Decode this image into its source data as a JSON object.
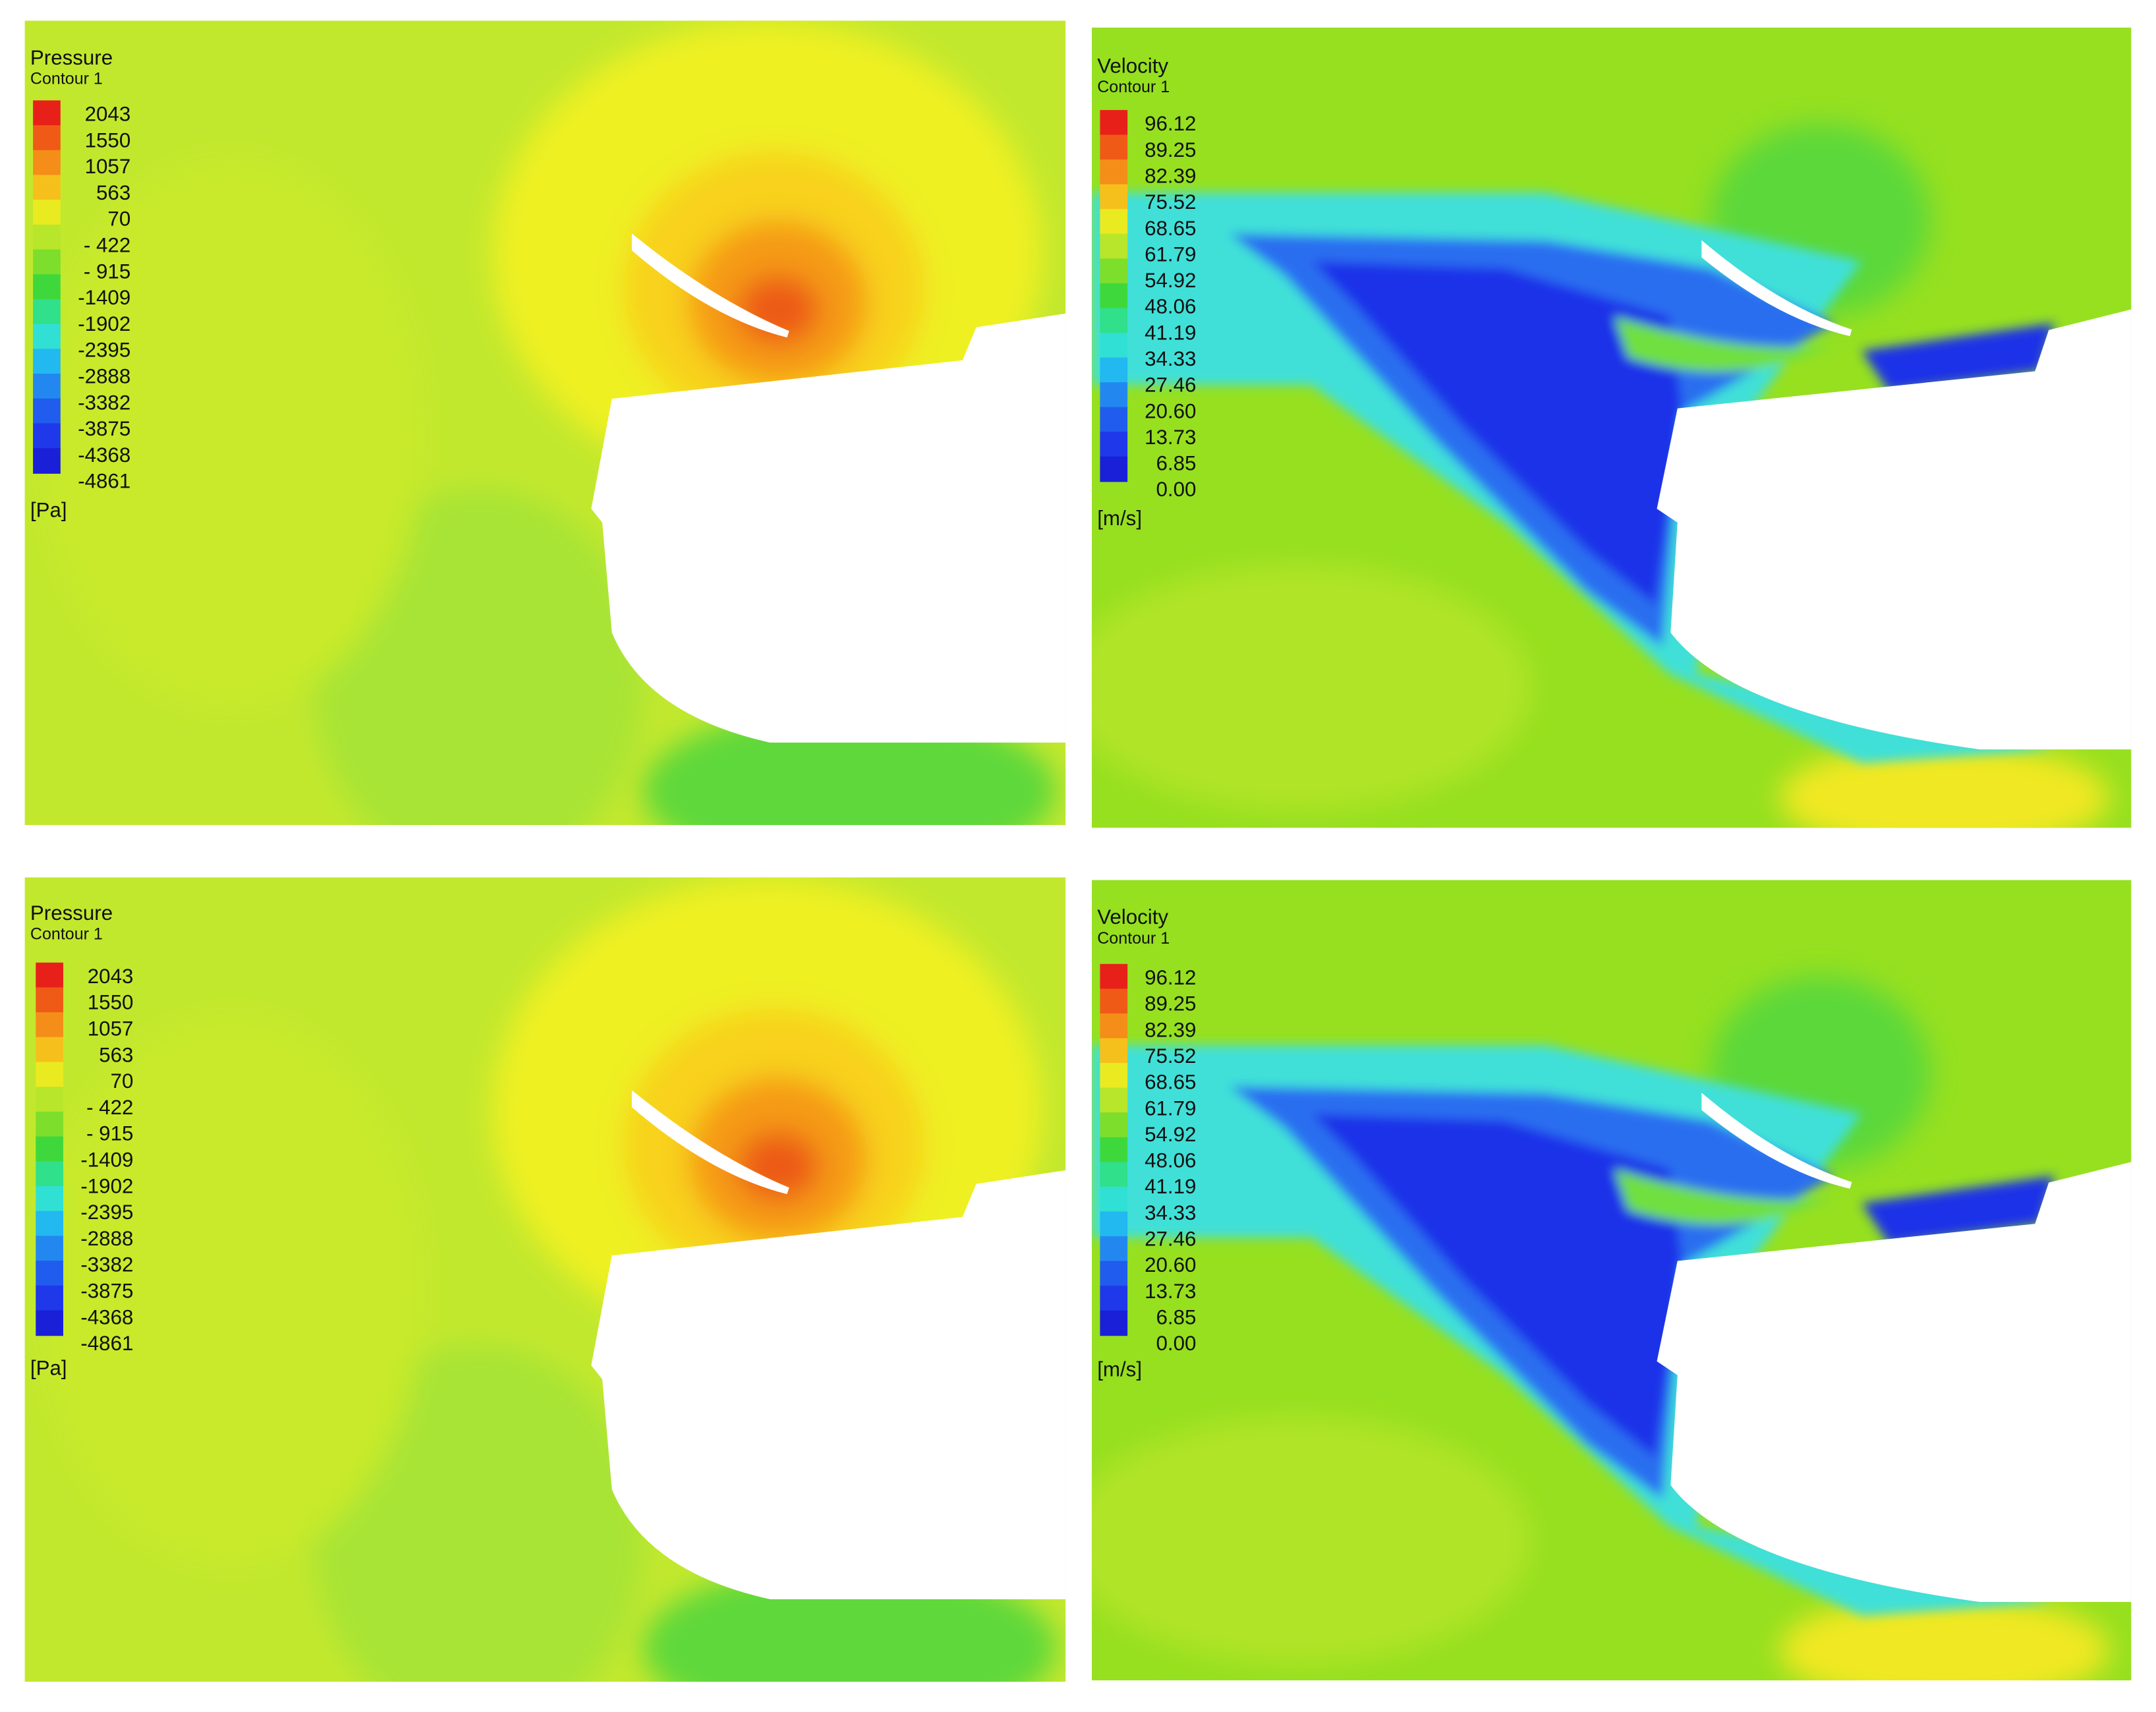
{
  "panels": [
    {
      "title": "Pressure",
      "subtitle": "Contour 1",
      "unit": "[Pa]",
      "levels": [
        "2043",
        "1550",
        "1057",
        "563",
        "70",
        "- 422",
        "- 915",
        "-1409",
        "-1902",
        "-2395",
        "-2888",
        "-3382",
        "-3875",
        "-4368",
        "-4861"
      ]
    },
    {
      "title": "Velocity",
      "subtitle": "Contour 1",
      "unit": "[m/s]",
      "levels": [
        "96.12",
        "89.25",
        "82.39",
        "75.52",
        "68.65",
        "61.79",
        "54.92",
        "48.06",
        "41.19",
        "34.33",
        "27.46",
        "20.60",
        "13.73",
        "6.85",
        "0.00"
      ]
    },
    {
      "title": "Pressure",
      "subtitle": "Contour 1",
      "unit": "[Pa]",
      "levels": [
        "2043",
        "1550",
        "1057",
        "563",
        "70",
        "- 422",
        "- 915",
        "-1409",
        "-1902",
        "-2395",
        "-2888",
        "-3382",
        "-3875",
        "-4368",
        "-4861"
      ]
    },
    {
      "title": "Velocity",
      "subtitle": "Contour 1",
      "unit": "[m/s]",
      "levels": [
        "96.12",
        "89.25",
        "82.39",
        "75.52",
        "68.65",
        "61.79",
        "54.92",
        "48.06",
        "41.19",
        "34.33",
        "27.46",
        "20.60",
        "13.73",
        "6.85",
        "0.00"
      ]
    }
  ]
}
